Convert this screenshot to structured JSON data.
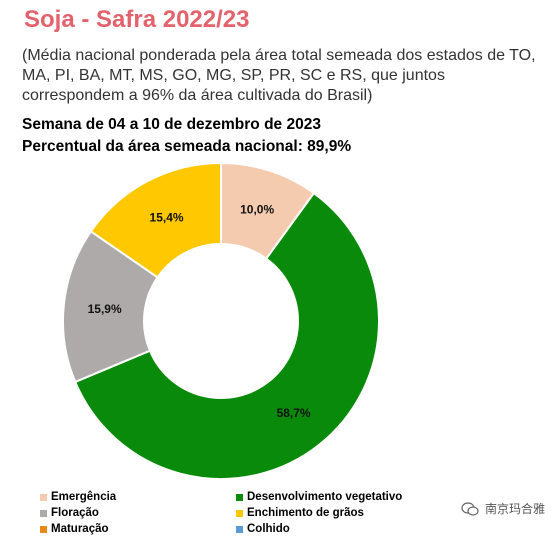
{
  "header": {
    "title": "Soja - Safra 2022/23",
    "subtitle": "(Média nacional ponderada pela área total semeada dos estados de TO, MA, PI, BA, MT, MS, GO, MG, SP, PR, SC e RS, que juntos correspondem a 96% da área cultivada do Brasil)",
    "week": "Semana de 04 a 10 de dezembro de 2023",
    "area_percent": "Percentual da área semeada nacional: 89,9%"
  },
  "chart_data": {
    "type": "pie",
    "title": "Soja - Safra 2022/23",
    "donut": true,
    "slices": [
      {
        "name": "Emergência",
        "value": 10.0,
        "label": "10,0%",
        "color": "#f5cbb0"
      },
      {
        "name": "Desenvolvimento vegetativo",
        "value": 58.7,
        "label": "58,7%",
        "color": "#0a8a0a"
      },
      {
        "name": "Floração",
        "value": 15.9,
        "label": "15,9%",
        "color": "#aeaaaa"
      },
      {
        "name": "Enchimento de grãos",
        "value": 15.4,
        "label": "15,4%",
        "color": "#ffc800"
      },
      {
        "name": "Maturação",
        "value": 0,
        "label": "",
        "color": "#e88a1a"
      },
      {
        "name": "Colhido",
        "value": 0,
        "label": "",
        "color": "#5b9bd5"
      }
    ],
    "legend_position": "bottom"
  },
  "legend": {
    "items": [
      {
        "label": "Emergência",
        "color": "#f5cbb0"
      },
      {
        "label": "Desenvolvimento vegetativo",
        "color": "#0a8a0a"
      },
      {
        "label": "Floração",
        "color": "#aeaaaa"
      },
      {
        "label": "Enchimento de grãos",
        "color": "#ffc800"
      },
      {
        "label": "Maturação",
        "color": "#e88a1a"
      },
      {
        "label": "Colhido",
        "color": "#5b9bd5"
      }
    ]
  },
  "watermark": {
    "text": "南京玛合雅",
    "icon": "wechat-icon"
  }
}
